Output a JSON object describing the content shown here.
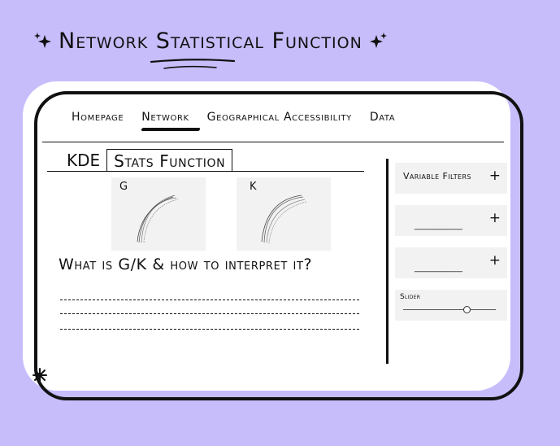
{
  "header": {
    "title": "Network Statistical Function",
    "decor_icons": [
      "sparkle-icon",
      "sparkle-icon"
    ]
  },
  "nav": {
    "items": [
      {
        "label": "Homepage"
      },
      {
        "label": "Network",
        "active": true
      },
      {
        "label": "Geographical Accessibility"
      },
      {
        "label": "Data"
      }
    ]
  },
  "tabs": [
    {
      "label": "KDE"
    },
    {
      "label": "Stats Function",
      "active": true
    }
  ],
  "plots": [
    {
      "label": "G"
    },
    {
      "label": "K"
    }
  ],
  "question": "What is G/K & how to interpret it?",
  "sidebar": {
    "filters": [
      {
        "label": "Variable Filters",
        "action_icon": "plus-icon",
        "action_label": "+"
      },
      {
        "placeholder": "_____________",
        "action_icon": "plus-icon",
        "action_label": "+"
      },
      {
        "placeholder": "_____________",
        "action_icon": "plus-icon",
        "action_label": "+"
      }
    ],
    "slider": {
      "label": "Slider",
      "value": 0.68
    }
  },
  "colors": {
    "background": "#c8bdfb",
    "panel": "#ffffff",
    "ink": "#111111",
    "box": "#f2f2f2"
  }
}
